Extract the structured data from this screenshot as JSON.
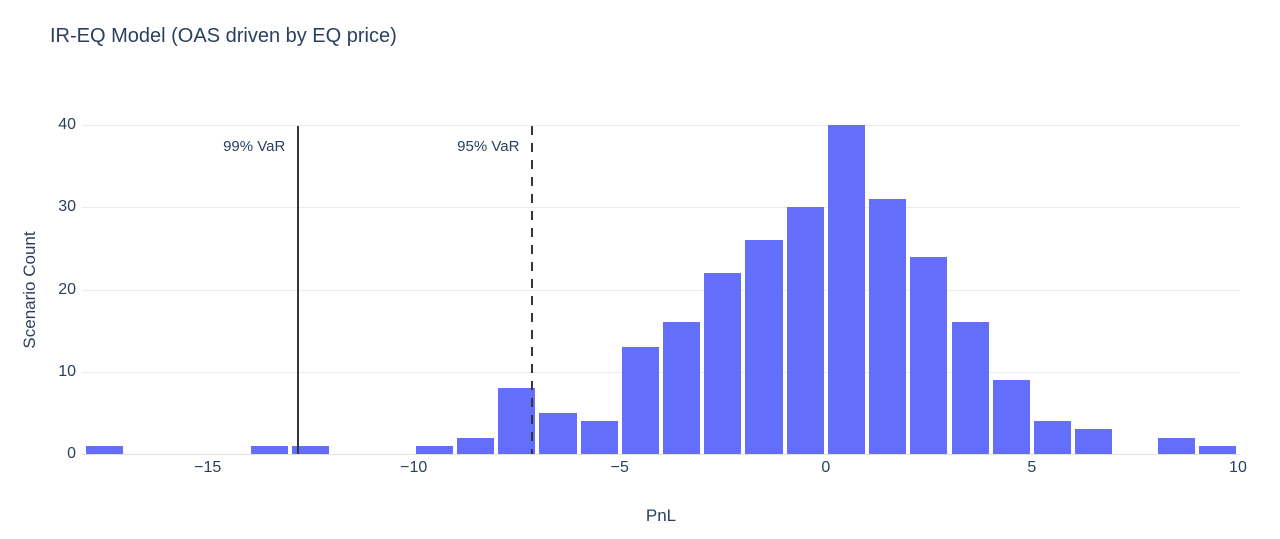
{
  "title": "IR-EQ Model (OAS driven by EQ price)",
  "colors": {
    "bar": "#636EFA",
    "text": "#2a3f5f",
    "grid": "#ececec",
    "axis_line": "#e2e2e2",
    "annotation_line": "#33373d",
    "background": "#ffffff"
  },
  "chart_data": {
    "type": "bar",
    "subtype": "histogram",
    "title": "IR-EQ Model (OAS driven by EQ price)",
    "xlabel": "PnL",
    "ylabel": "Scenario Count",
    "bin_width": 1,
    "bin_centers": [
      -17.5,
      -16.5,
      -15.5,
      -14.5,
      -13.5,
      -12.5,
      -11.5,
      -10.5,
      -9.5,
      -8.5,
      -7.5,
      -6.5,
      -5.5,
      -4.5,
      -3.5,
      -2.5,
      -1.5,
      -0.5,
      0.5,
      1.5,
      2.5,
      3.5,
      4.5,
      5.5,
      6.5,
      7.5,
      8.5,
      9.5
    ],
    "counts": [
      1,
      0,
      0,
      0,
      1,
      1,
      0,
      0,
      1,
      2,
      8,
      5,
      4,
      13,
      16,
      22,
      26,
      30,
      40,
      31,
      24,
      16,
      9,
      4,
      3,
      0,
      2,
      1
    ],
    "xlim": [
      -18.05,
      10.05
    ],
    "ylim": [
      0,
      40
    ],
    "xticks": {
      "values": [
        -15,
        -10,
        -5,
        0,
        5,
        10
      ],
      "labels": [
        "−15",
        "−10",
        "−5",
        "0",
        "5",
        "10"
      ]
    },
    "yticks": {
      "values": [
        0,
        10,
        20,
        30,
        40
      ],
      "labels": [
        "0",
        "10",
        "20",
        "30",
        "40"
      ]
    },
    "grid": "horizontal",
    "legend": false,
    "annotations": [
      {
        "label": "99% VaR",
        "x": -12.8,
        "line_style": "solid"
      },
      {
        "label": "95% VaR",
        "x": -7.12,
        "line_style": "dashed"
      }
    ]
  }
}
